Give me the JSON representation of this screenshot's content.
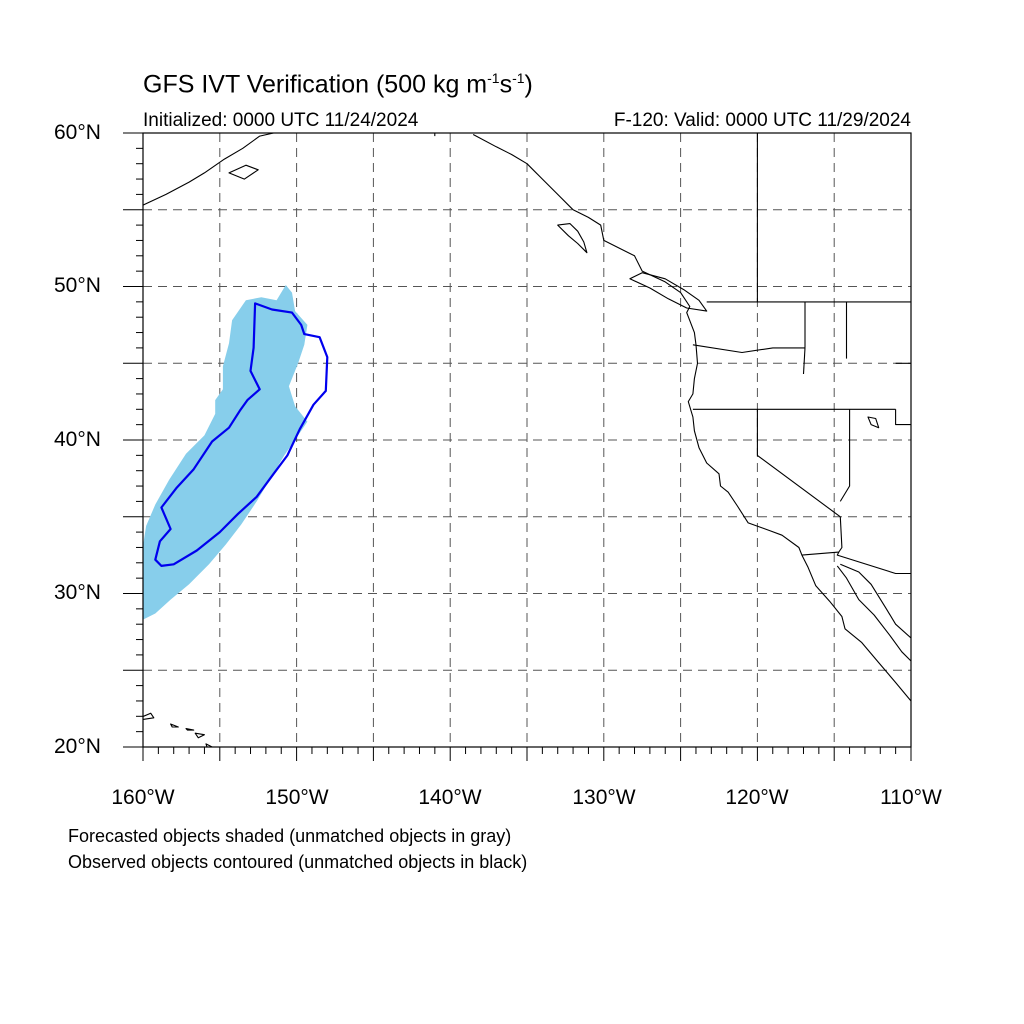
{
  "title": {
    "main": "GFS IVT Verification (500 kg m",
    "sup1": "-1",
    "mid": "s",
    "sup2": "-1",
    "end": ")"
  },
  "initialized": "Initialized: 0000 UTC 11/24/2024",
  "valid": "F-120: Valid: 0000 UTC 11/29/2024",
  "lat_labels": [
    "60°N",
    "50°N",
    "40°N",
    "30°N",
    "20°N"
  ],
  "lon_labels": [
    "160°W",
    "150°W",
    "140°W",
    "130°W",
    "120°W",
    "110°W"
  ],
  "notes": {
    "forecast": "Forecasted objects shaded (unmatched objects in gray)",
    "observed": "Observed objects contoured (unmatched objects in black)"
  },
  "colors": {
    "forecast_fill": "#87ceeb",
    "observed_contour": "#0000ee",
    "coast": "#000000",
    "grid": "#555555"
  },
  "map": {
    "projection": "equidistant-cylindrical",
    "lat_range": [
      20,
      60
    ],
    "lon_range": [
      -160,
      -110
    ],
    "grid_lat_step": 5,
    "grid_lon_step": 5
  },
  "forecast_object": [
    [
      -160,
      28.3
    ],
    [
      -159.2,
      28.7
    ],
    [
      -158.2,
      29.6
    ],
    [
      -157,
      30.6
    ],
    [
      -155.7,
      31.9
    ],
    [
      -154.6,
      33.2
    ],
    [
      -153.6,
      34.5
    ],
    [
      -152.6,
      36
    ],
    [
      -151.7,
      37.5
    ],
    [
      -150.8,
      39
    ],
    [
      -149.9,
      40.3
    ],
    [
      -149.3,
      41.2
    ],
    [
      -150.1,
      42.2
    ],
    [
      -150.5,
      43.5
    ],
    [
      -149.9,
      45
    ],
    [
      -149.5,
      46.2
    ],
    [
      -149.3,
      47.5
    ],
    [
      -150.1,
      48.4
    ],
    [
      -150.3,
      49.6
    ],
    [
      -150.7,
      50.1
    ],
    [
      -151.3,
      49.1
    ],
    [
      -152.3,
      49.3
    ],
    [
      -153.3,
      49.1
    ],
    [
      -154.2,
      47.8
    ],
    [
      -154.4,
      46.3
    ],
    [
      -154.8,
      44.8
    ],
    [
      -154.8,
      43.3
    ],
    [
      -155.3,
      42.6
    ],
    [
      -155.3,
      41.7
    ],
    [
      -156,
      40.3
    ],
    [
      -157.2,
      39.1
    ],
    [
      -158.3,
      37.4
    ],
    [
      -159.2,
      35.8
    ],
    [
      -159.8,
      34.4
    ],
    [
      -160,
      33.1
    ]
  ],
  "observed_object": [
    [
      -158.8,
      31.8
    ],
    [
      -158,
      31.9
    ],
    [
      -156.5,
      32.8
    ],
    [
      -155,
      34
    ],
    [
      -153.8,
      35.2
    ],
    [
      -152.6,
      36.3
    ],
    [
      -151.5,
      37.8
    ],
    [
      -150.6,
      39
    ],
    [
      -149.8,
      40.7
    ],
    [
      -148.9,
      42.3
    ],
    [
      -148.1,
      43.2
    ],
    [
      -148,
      45.4
    ],
    [
      -148.5,
      46.7
    ],
    [
      -149.5,
      46.9
    ],
    [
      -149.7,
      47.5
    ],
    [
      -150.3,
      48.3
    ],
    [
      -151.6,
      48.5
    ],
    [
      -152.7,
      48.9
    ],
    [
      -152.8,
      46
    ],
    [
      -153,
      44.5
    ],
    [
      -152.4,
      43.3
    ],
    [
      -153.2,
      42.6
    ],
    [
      -153.7,
      41.9
    ],
    [
      -154.4,
      40.8
    ],
    [
      -155.5,
      39.9
    ],
    [
      -156.7,
      38.1
    ],
    [
      -157.8,
      36.9
    ],
    [
      -158.8,
      35.6
    ],
    [
      -158.2,
      34.2
    ],
    [
      -158.9,
      33.4
    ],
    [
      -159.2,
      32.2
    ]
  ],
  "coastline": [
    [
      -138.5,
      59.9
    ],
    [
      -137,
      59.1
    ],
    [
      -136,
      58.6
    ],
    [
      -135,
      58
    ],
    [
      -134,
      57
    ],
    [
      -133,
      56
    ],
    [
      -132,
      55
    ],
    [
      -131,
      54.5
    ],
    [
      -130.2,
      54
    ],
    [
      -130,
      53
    ],
    [
      -129,
      52.5
    ],
    [
      -128,
      52
    ],
    [
      -127.5,
      51
    ],
    [
      -126,
      50.3
    ],
    [
      -125,
      49.6
    ],
    [
      -124.4,
      48.7
    ],
    [
      -124.6,
      48.3
    ],
    [
      -124.1,
      47
    ],
    [
      -124,
      46.2
    ],
    [
      -123.9,
      45
    ],
    [
      -124.1,
      44
    ],
    [
      -124.2,
      43
    ],
    [
      -124.5,
      42.5
    ],
    [
      -124.2,
      41.5
    ],
    [
      -124.1,
      40.6
    ],
    [
      -123.8,
      39.5
    ],
    [
      -123.3,
      38.5
    ],
    [
      -122.5,
      37.8
    ],
    [
      -122.4,
      37
    ],
    [
      -121.9,
      36.6
    ],
    [
      -121.3,
      35.7
    ],
    [
      -120.6,
      34.6
    ],
    [
      -119.2,
      34.1
    ],
    [
      -118.4,
      33.8
    ],
    [
      -117.3,
      33
    ],
    [
      -117.1,
      32.5
    ],
    [
      -116.7,
      31.7
    ],
    [
      -116.2,
      30.5
    ],
    [
      -115.3,
      29.5
    ],
    [
      -114.5,
      28.5
    ],
    [
      -114.3,
      27.7
    ],
    [
      -113.2,
      26.8
    ],
    [
      -112.1,
      25.5
    ],
    [
      -111,
      24.2
    ],
    [
      -110,
      23
    ]
  ],
  "gulf_coast": [
    [
      -114.8,
      31.8
    ],
    [
      -114.2,
      31
    ],
    [
      -113.4,
      29.6
    ],
    [
      -112.4,
      28.6
    ],
    [
      -111.4,
      27.3
    ],
    [
      -110.6,
      26.2
    ],
    [
      -110,
      25.6
    ]
  ],
  "mainland_gulf_coast": [
    [
      -114.6,
      31.9
    ],
    [
      -113.4,
      31.4
    ],
    [
      -112.6,
      30.6
    ],
    [
      -111.6,
      29
    ],
    [
      -111,
      28
    ],
    [
      -110,
      27.1
    ]
  ],
  "vancouver_island": [
    [
      -123.3,
      48.4
    ],
    [
      -124.6,
      48.6
    ],
    [
      -125.8,
      49.2
    ],
    [
      -127,
      49.9
    ],
    [
      -128.3,
      50.5
    ],
    [
      -127.5,
      50.9
    ],
    [
      -126,
      50.5
    ],
    [
      -124.8,
      49.8
    ],
    [
      -123.8,
      49.1
    ],
    [
      -123.3,
      48.4
    ]
  ],
  "haida_gwaii": [
    [
      -131.1,
      52.2
    ],
    [
      -131.7,
      52.8
    ],
    [
      -132.3,
      53.3
    ],
    [
      -133,
      54
    ],
    [
      -132.2,
      54.1
    ],
    [
      -131.7,
      53.6
    ],
    [
      -131.3,
      52.9
    ],
    [
      -131.1,
      52.2
    ]
  ],
  "alaska_fragment": [
    [
      -160,
      55.3
    ],
    [
      -158.5,
      56
    ],
    [
      -157,
      56.8
    ],
    [
      -156,
      57.4
    ],
    [
      -154.7,
      58.3
    ],
    [
      -153.5,
      59
    ],
    [
      -152.4,
      59.8
    ],
    [
      -151.5,
      60
    ]
  ],
  "kodiak": [
    [
      -154.4,
      57.4
    ],
    [
      -153.3,
      57.9
    ],
    [
      -152.5,
      57.6
    ],
    [
      -153.4,
      57
    ],
    [
      -154.4,
      57.4
    ]
  ],
  "hawaii": [
    [
      [
        -160.2,
        21.9
      ],
      [
        -159.5,
        22.2
      ],
      [
        -159.3,
        21.9
      ],
      [
        -160,
        21.8
      ],
      [
        -160.2,
        21.9
      ]
    ],
    [
      [
        -158.2,
        21.5
      ],
      [
        -157.7,
        21.3
      ],
      [
        -158.1,
        21.3
      ],
      [
        -158.2,
        21.5
      ]
    ],
    [
      [
        -157.2,
        21.2
      ],
      [
        -156.7,
        21.1
      ],
      [
        -157.1,
        21.1
      ],
      [
        -157.2,
        21.2
      ]
    ],
    [
      [
        -156.6,
        20.9
      ],
      [
        -156,
        20.8
      ],
      [
        -156.4,
        20.6
      ],
      [
        -156.6,
        20.9
      ]
    ],
    [
      [
        -155.9,
        20.2
      ],
      [
        -155.1,
        19.8
      ],
      [
        -154.8,
        19.5
      ],
      [
        -155.5,
        19
      ],
      [
        -155.9,
        20.2
      ]
    ]
  ],
  "borders": [
    [
      [
        -123.3,
        49
      ],
      [
        -110,
        49
      ]
    ],
    [
      [
        -120,
        60
      ],
      [
        -120,
        49
      ]
    ],
    [
      [
        -141,
        60
      ],
      [
        -141,
        59.8
      ]
    ],
    [
      [
        -124.2,
        46.2
      ],
      [
        -121,
        45.7
      ],
      [
        -119,
        46
      ],
      [
        -116.9,
        46
      ]
    ],
    [
      [
        -116.9,
        46
      ],
      [
        -116.9,
        49
      ]
    ],
    [
      [
        -124.2,
        42
      ],
      [
        -111,
        42
      ]
    ],
    [
      [
        -117,
        44.3
      ],
      [
        -116.9,
        46
      ]
    ],
    [
      [
        -120,
        42
      ],
      [
        -120,
        39
      ],
      [
        -114.6,
        35
      ]
    ],
    [
      [
        -114.6,
        35
      ],
      [
        -114.5,
        33
      ],
      [
        -114.7,
        32.7
      ],
      [
        -117.1,
        32.5
      ]
    ],
    [
      [
        -114.7,
        32.7
      ],
      [
        -114.8,
        32.5
      ],
      [
        -111,
        31.3
      ],
      [
        -110,
        31.3
      ]
    ],
    [
      [
        -114,
        42
      ],
      [
        -114,
        37
      ],
      [
        -114.6,
        36
      ]
    ],
    [
      [
        -111,
        42
      ],
      [
        -111,
        41
      ],
      [
        -110,
        41
      ]
    ],
    [
      [
        -111,
        45
      ],
      [
        -110,
        45
      ]
    ],
    [
      [
        -114.2,
        49
      ],
      [
        -114.2,
        45.3
      ]
    ]
  ],
  "lakes": [
    [
      [
        -112.8,
        41.5
      ],
      [
        -112.3,
        41.4
      ],
      [
        -112.1,
        40.8
      ],
      [
        -112.6,
        41
      ],
      [
        -112.8,
        41.5
      ]
    ]
  ]
}
